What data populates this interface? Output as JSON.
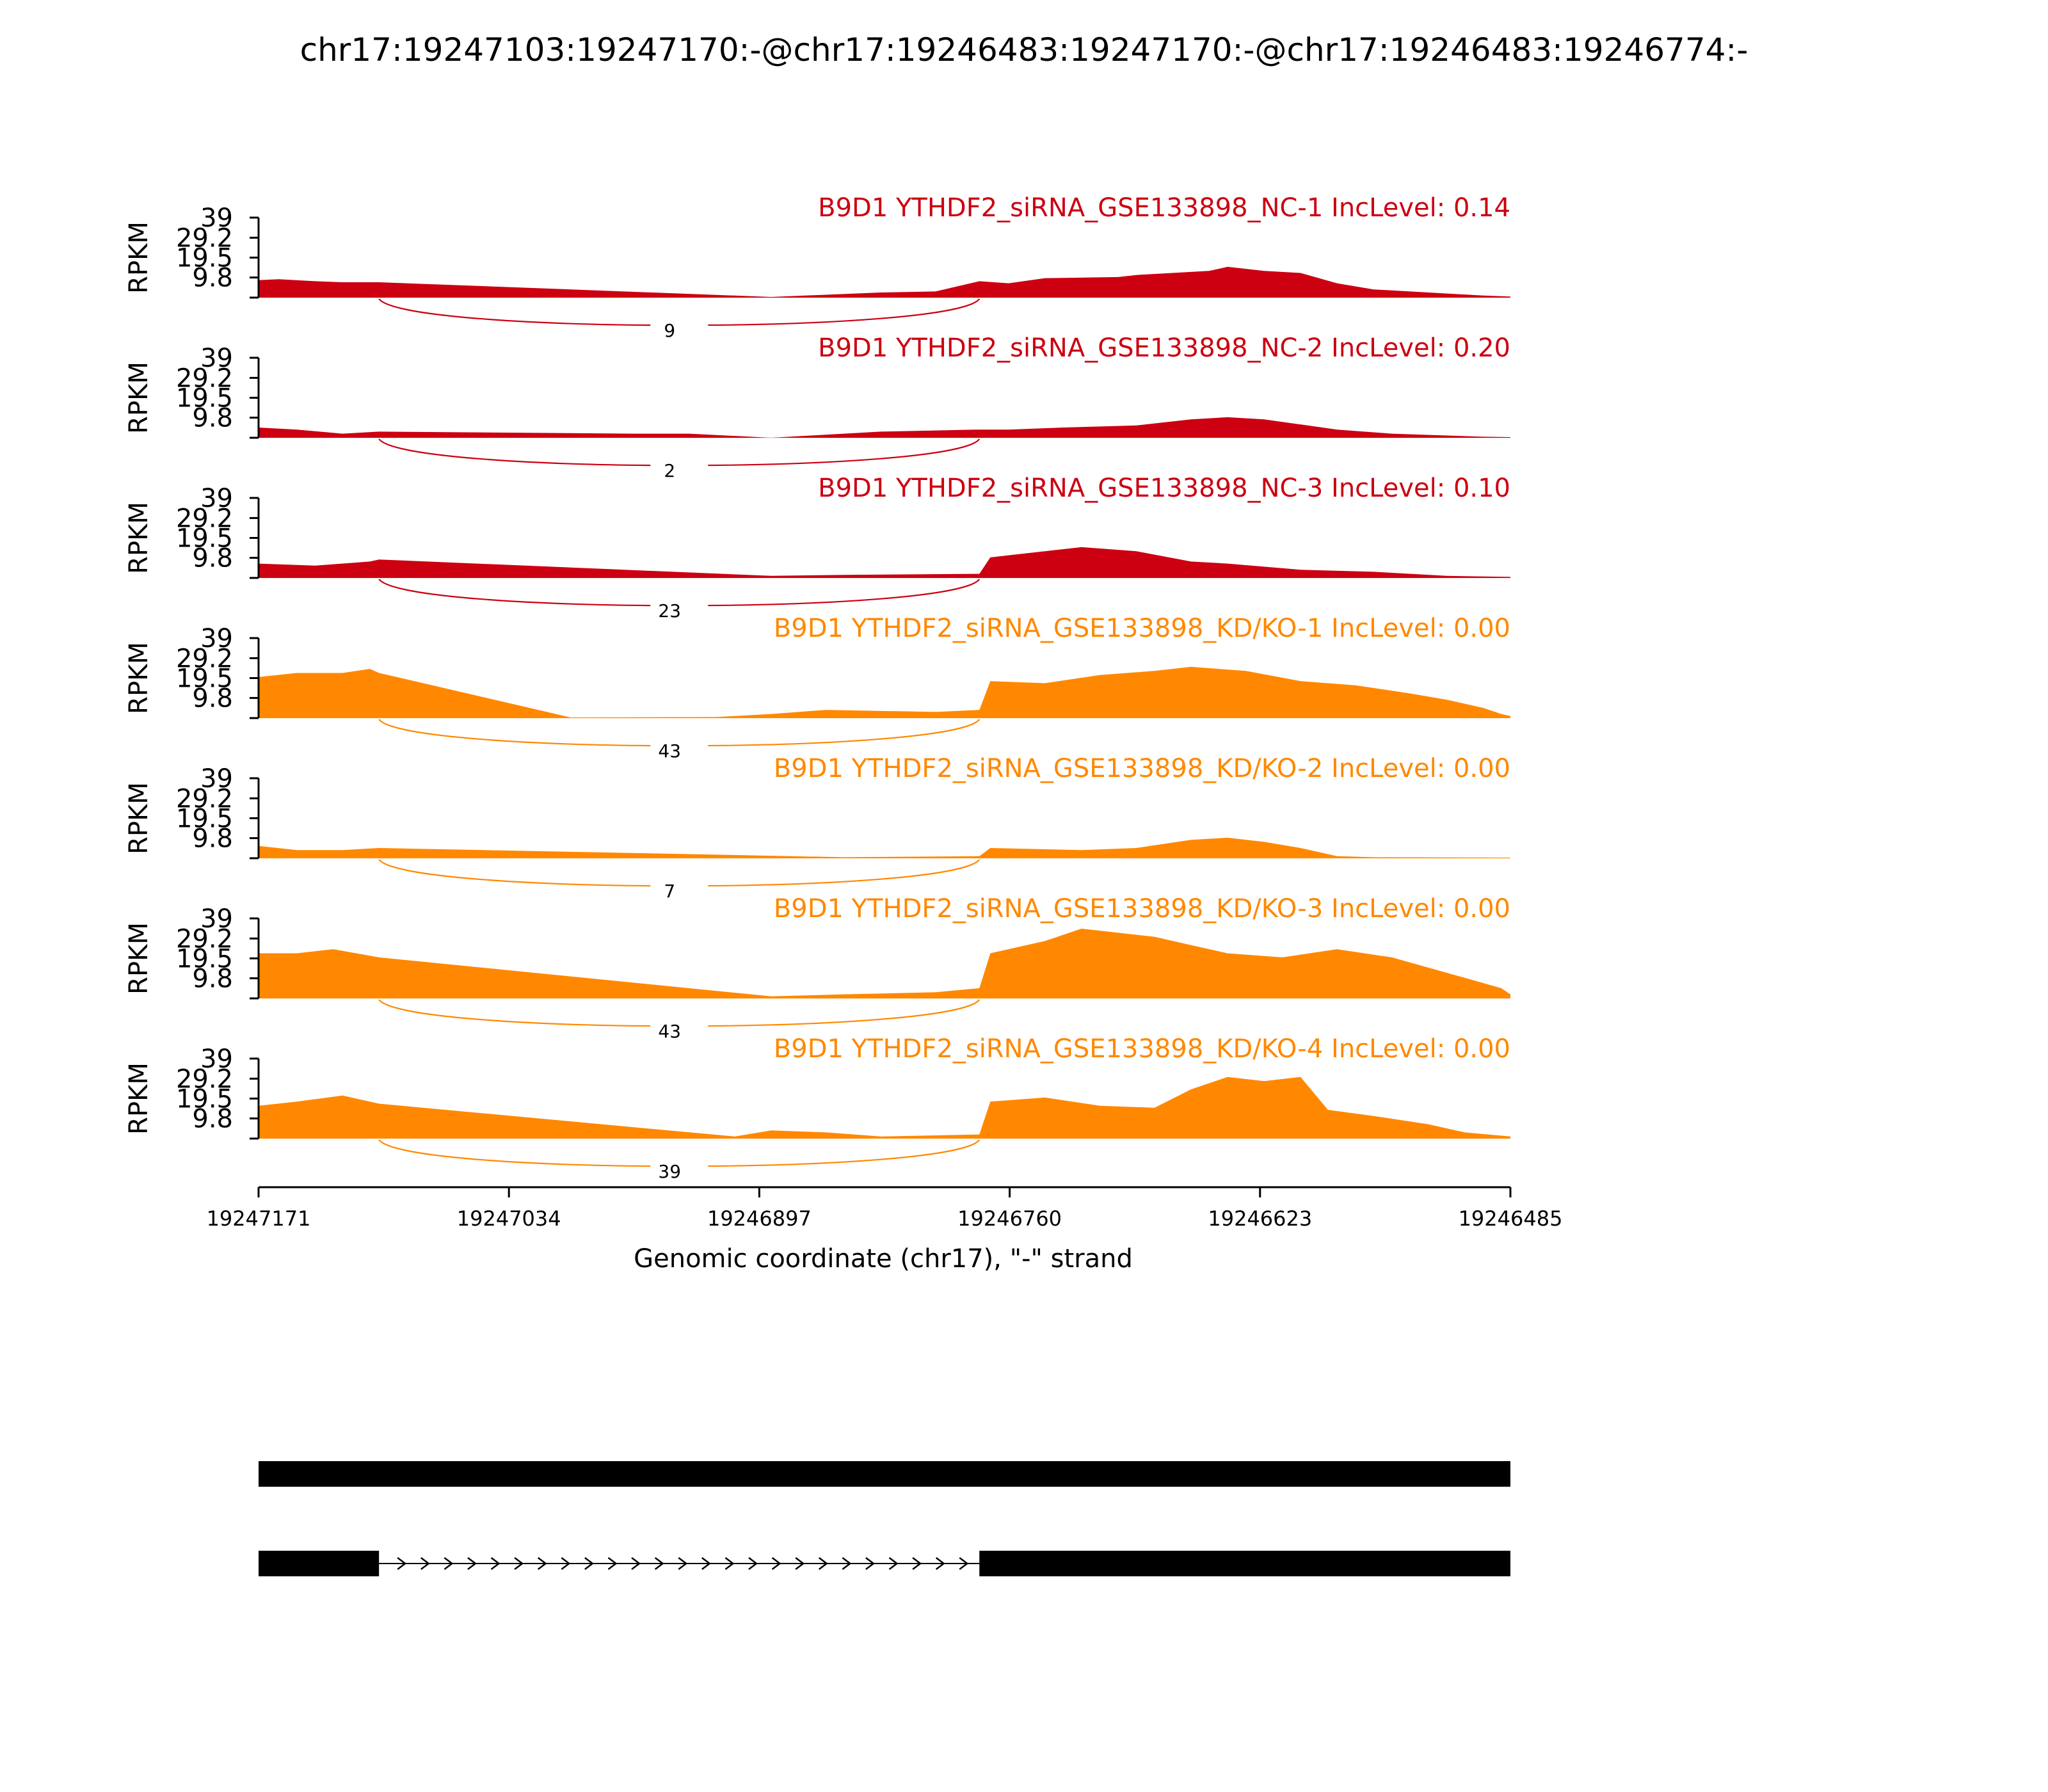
{
  "chart_data": {
    "type": "area",
    "title": "chr17:19247103:19247170:-@chr17:19246483:19247170:-@chr17:19246483:19246774:-",
    "ylabel": "RPKM",
    "xlabel": "Genomic coordinate (chr17), \"-\" strand",
    "x_domain": [
      19247171,
      19246485
    ],
    "x_ticks": [
      "19247171",
      "19247034",
      "19246897",
      "19246760",
      "19246623",
      "19246485"
    ],
    "ylim": [
      0,
      39
    ],
    "y_ticks": [
      "9.8",
      "19.5",
      "29.2",
      "39"
    ],
    "exons": {
      "exon_a": [
        19247171,
        19247105
      ],
      "exon_b": [
        19246776,
        19246485
      ]
    },
    "colors": {
      "NC": "#cc0011",
      "KD": "#ff8800"
    },
    "tracks": [
      {
        "group": "NC",
        "label": "B9D1 YTHDF2_siRNA_GSE133898_NC-1 IncLevel: 0.14",
        "junction_count": "9",
        "coverage": [
          [
            19247171,
            8.5
          ],
          [
            19247160,
            9
          ],
          [
            19247140,
            8
          ],
          [
            19247125,
            7.5
          ],
          [
            19247105,
            7.5
          ],
          [
            19246890,
            0.3
          ],
          [
            19246830,
            2.5
          ],
          [
            19246800,
            3
          ],
          [
            19246776,
            8
          ],
          [
            19246760,
            7
          ],
          [
            19246740,
            9.5
          ],
          [
            19246700,
            10
          ],
          [
            19246690,
            11
          ],
          [
            19246650,
            13
          ],
          [
            19246640,
            15
          ],
          [
            19246620,
            13
          ],
          [
            19246600,
            12
          ],
          [
            19246580,
            7
          ],
          [
            19246560,
            4
          ],
          [
            19246540,
            3
          ],
          [
            19246500,
            1
          ],
          [
            19246485,
            0.5
          ]
        ]
      },
      {
        "group": "NC",
        "label": "B9D1 YTHDF2_siRNA_GSE133898_NC-2 IncLevel: 0.20",
        "junction_count": "2",
        "coverage": [
          [
            19247171,
            5
          ],
          [
            19247150,
            4
          ],
          [
            19247125,
            2
          ],
          [
            19247105,
            3
          ],
          [
            19246965,
            2
          ],
          [
            19246935,
            2
          ],
          [
            19246890,
            0
          ],
          [
            19246830,
            3
          ],
          [
            19246776,
            4
          ],
          [
            19246760,
            4
          ],
          [
            19246730,
            5
          ],
          [
            19246690,
            6
          ],
          [
            19246660,
            9
          ],
          [
            19246640,
            10
          ],
          [
            19246620,
            9
          ],
          [
            19246580,
            4
          ],
          [
            19246550,
            2
          ],
          [
            19246500,
            0.5
          ],
          [
            19246485,
            0.3
          ]
        ]
      },
      {
        "group": "NC",
        "label": "B9D1 YTHDF2_siRNA_GSE133898_NC-3 IncLevel: 0.10",
        "junction_count": "23",
        "coverage": [
          [
            19247171,
            7
          ],
          [
            19247140,
            6
          ],
          [
            19247110,
            8
          ],
          [
            19247105,
            9
          ],
          [
            19246890,
            1
          ],
          [
            19246850,
            1.5
          ],
          [
            19246776,
            2
          ],
          [
            19246770,
            10
          ],
          [
            19246740,
            13
          ],
          [
            19246720,
            15
          ],
          [
            19246690,
            13
          ],
          [
            19246660,
            8
          ],
          [
            19246640,
            7
          ],
          [
            19246600,
            4
          ],
          [
            19246560,
            3
          ],
          [
            19246520,
            1
          ],
          [
            19246485,
            0.5
          ]
        ]
      },
      {
        "group": "KD",
        "label": "B9D1 YTHDF2_siRNA_GSE133898_KD/KO-1 IncLevel: 0.00",
        "junction_count": "43",
        "coverage": [
          [
            19247171,
            20
          ],
          [
            19247150,
            22
          ],
          [
            19247125,
            22
          ],
          [
            19247110,
            24
          ],
          [
            19247105,
            22
          ],
          [
            19247000,
            0.3
          ],
          [
            19246920,
            0.5
          ],
          [
            19246890,
            2
          ],
          [
            19246860,
            4
          ],
          [
            19246800,
            3
          ],
          [
            19246776,
            4
          ],
          [
            19246770,
            18
          ],
          [
            19246740,
            17
          ],
          [
            19246710,
            21
          ],
          [
            19246680,
            23
          ],
          [
            19246660,
            25
          ],
          [
            19246630,
            23
          ],
          [
            19246600,
            18
          ],
          [
            19246570,
            16
          ],
          [
            19246540,
            12
          ],
          [
            19246520,
            9
          ],
          [
            19246500,
            5
          ],
          [
            19246490,
            2
          ],
          [
            19246485,
            1
          ]
        ]
      },
      {
        "group": "KD",
        "label": "B9D1 YTHDF2_siRNA_GSE133898_KD/KO-2 IncLevel: 0.00",
        "junction_count": "7",
        "coverage": [
          [
            19247171,
            6
          ],
          [
            19247150,
            4
          ],
          [
            19247125,
            4
          ],
          [
            19247105,
            5
          ],
          [
            19246850,
            0.5
          ],
          [
            19246776,
            1
          ],
          [
            19246770,
            5
          ],
          [
            19246720,
            4
          ],
          [
            19246690,
            5
          ],
          [
            19246660,
            9
          ],
          [
            19246640,
            10
          ],
          [
            19246620,
            8
          ],
          [
            19246600,
            5
          ],
          [
            19246580,
            1
          ],
          [
            19246560,
            0.5
          ],
          [
            19246485,
            0.3
          ]
        ]
      },
      {
        "group": "KD",
        "label": "B9D1 YTHDF2_siRNA_GSE133898_KD/KO-3 IncLevel: 0.00",
        "junction_count": "43",
        "coverage": [
          [
            19247171,
            22
          ],
          [
            19247150,
            22
          ],
          [
            19247130,
            24
          ],
          [
            19247105,
            20
          ],
          [
            19246890,
            1
          ],
          [
            19246850,
            2
          ],
          [
            19246800,
            3
          ],
          [
            19246776,
            5
          ],
          [
            19246770,
            22
          ],
          [
            19246740,
            28
          ],
          [
            19246720,
            34
          ],
          [
            19246700,
            32
          ],
          [
            19246680,
            30
          ],
          [
            19246660,
            26
          ],
          [
            19246640,
            22
          ],
          [
            19246610,
            20
          ],
          [
            19246580,
            24
          ],
          [
            19246550,
            20
          ],
          [
            19246530,
            15
          ],
          [
            19246510,
            10
          ],
          [
            19246490,
            5
          ],
          [
            19246485,
            2
          ]
        ]
      },
      {
        "group": "KD",
        "label": "B9D1 YTHDF2_siRNA_GSE133898_KD/KO-4 IncLevel: 0.00",
        "junction_count": "39",
        "coverage": [
          [
            19247171,
            16
          ],
          [
            19247150,
            18
          ],
          [
            19247125,
            21
          ],
          [
            19247105,
            17
          ],
          [
            19246910,
            1
          ],
          [
            19246890,
            4
          ],
          [
            19246860,
            3
          ],
          [
            19246830,
            1
          ],
          [
            19246776,
            2
          ],
          [
            19246770,
            18
          ],
          [
            19246740,
            20
          ],
          [
            19246710,
            16
          ],
          [
            19246680,
            15
          ],
          [
            19246660,
            24
          ],
          [
            19246640,
            30
          ],
          [
            19246620,
            28
          ],
          [
            19246600,
            30
          ],
          [
            19246585,
            14
          ],
          [
            19246560,
            11
          ],
          [
            19246530,
            7
          ],
          [
            19246510,
            3
          ],
          [
            19246485,
            1
          ]
        ]
      }
    ],
    "isoforms": [
      "isoform-1",
      "isoform-2"
    ]
  }
}
